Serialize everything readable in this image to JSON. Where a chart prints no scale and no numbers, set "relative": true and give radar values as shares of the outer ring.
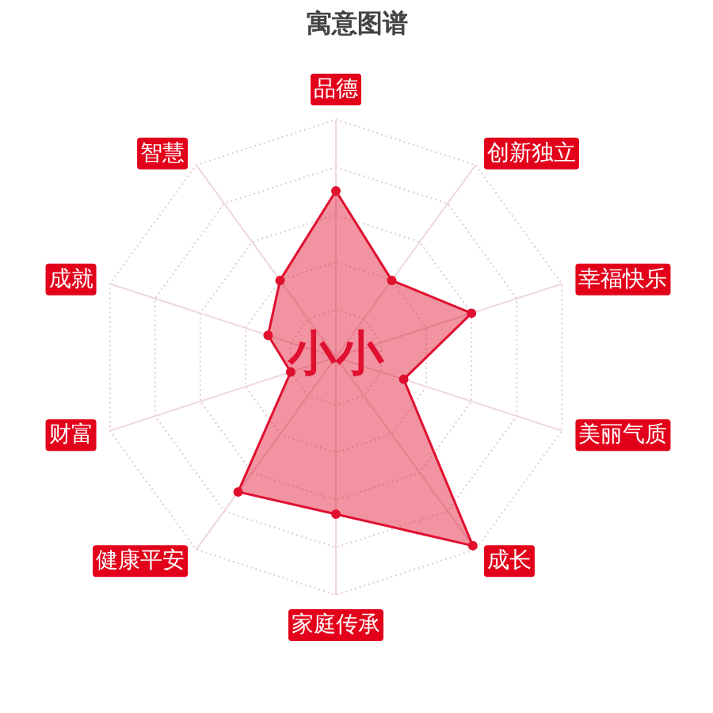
{
  "chart_data": {
    "type": "radar",
    "title": "寓意图谱",
    "categories": [
      "品德",
      "创新独立",
      "幸福快乐",
      "美丽气质",
      "成长",
      "家庭传承",
      "健康平安",
      "财富",
      "成就",
      "智慧"
    ],
    "relative": true,
    "series": [
      {
        "color": "#e0102f",
        "values": [
          0.7,
          0.4,
          0.6,
          0.3,
          0.98,
          0.66,
          0.7,
          0.2,
          0.3,
          0.4
        ]
      }
    ],
    "annotations": [
      "小小"
    ],
    "marker": "circle",
    "grid": true
  }
}
